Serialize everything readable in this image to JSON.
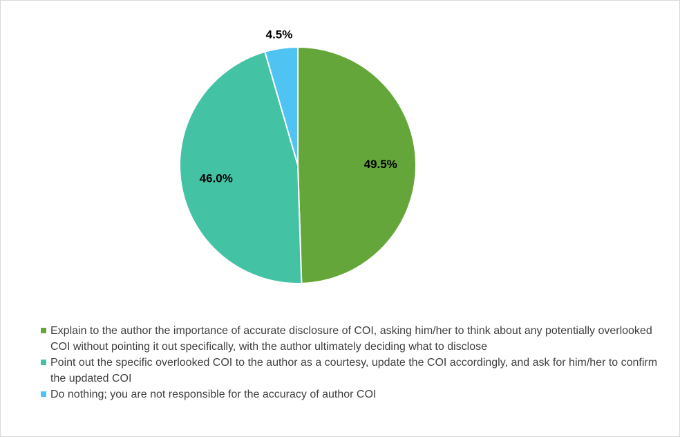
{
  "chart_data": {
    "type": "pie",
    "title": "",
    "legend_position": "bottom",
    "slices": [
      {
        "label": "Explain to the author the importance of accurate disclosure of COI, asking him/her to think about any potentially overlooked COI without pointing it out specifically, with the author ultimately deciding what to disclose",
        "value": 49.5,
        "display": "49.5%",
        "color": "#65a63a"
      },
      {
        "label": "Point out the specific overlooked COI to the author as a courtesy, update the COI accordingly, and ask for him/her to confirm the updated COI",
        "value": 46.0,
        "display": "46.0%",
        "color": "#44c2a4"
      },
      {
        "label": "Do nothing; you are not responsible for the accuracy of author COI",
        "value": 4.5,
        "display": "4.5%",
        "color": "#4fc3f2"
      }
    ]
  }
}
